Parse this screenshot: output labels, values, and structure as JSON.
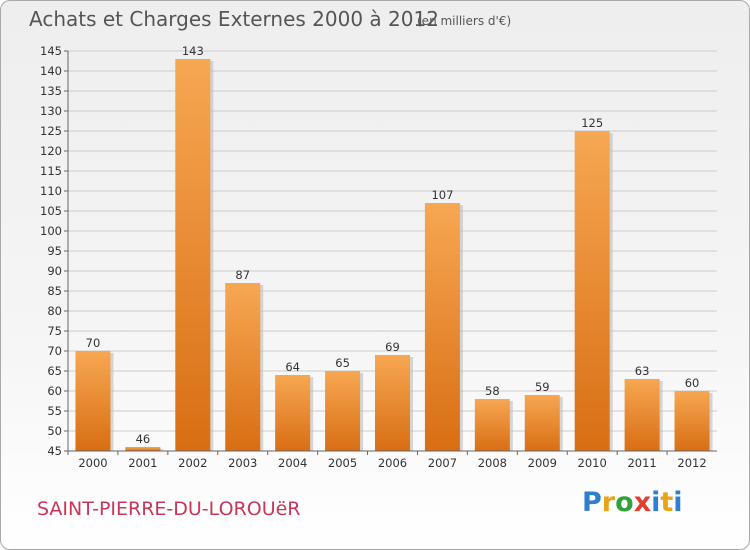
{
  "header": {
    "title": "Achats et Charges Externes 2000 à 2012",
    "subtitle": "(en milliers d'€)"
  },
  "footer": {
    "town": "SAINT-PIERRE-DU-LOROUëR",
    "logo_letters": [
      "P",
      "r",
      "o",
      "x",
      "i",
      "t",
      "i"
    ]
  },
  "colors": {
    "bar_light": "#f7a752",
    "bar_dark": "#d86e14",
    "gridline": "#cccccc",
    "town_text": "#c8365a"
  },
  "chart_data": {
    "type": "bar",
    "title": "Achats et Charges Externes 2000 à 2012",
    "xlabel": "",
    "ylabel": "",
    "categories": [
      "2000",
      "2001",
      "2002",
      "2003",
      "2004",
      "2005",
      "2006",
      "2007",
      "2008",
      "2009",
      "2010",
      "2011",
      "2012"
    ],
    "values": [
      70,
      46,
      143,
      87,
      64,
      65,
      69,
      107,
      58,
      59,
      125,
      63,
      60
    ],
    "ylim": [
      45,
      145
    ],
    "yticks": [
      45,
      50,
      55,
      60,
      65,
      70,
      75,
      80,
      85,
      90,
      95,
      100,
      105,
      110,
      115,
      120,
      125,
      130,
      135,
      140,
      145
    ],
    "grid": true,
    "legend": "none"
  }
}
